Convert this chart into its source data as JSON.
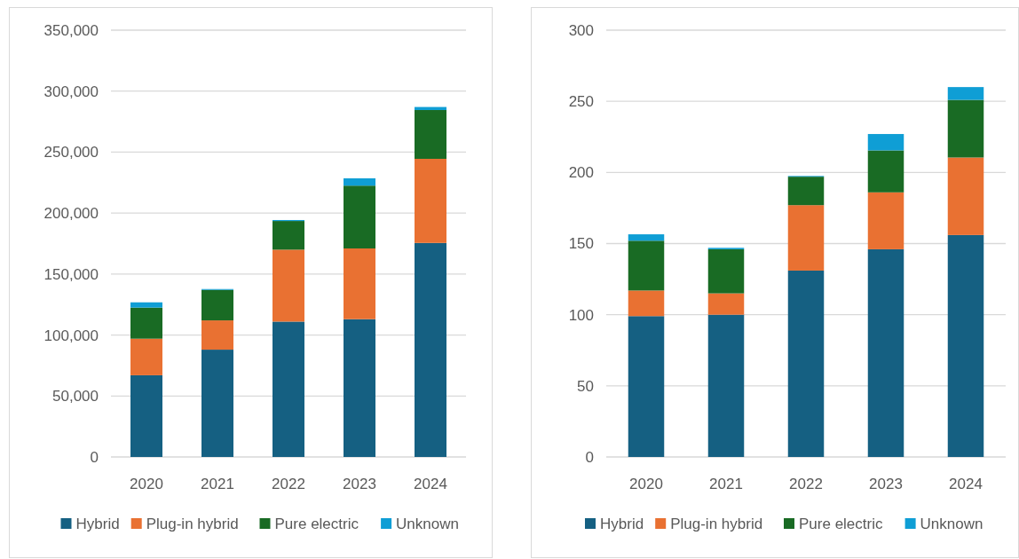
{
  "chart_data": [
    {
      "type": "bar",
      "stacked": true,
      "categories": [
        "2020",
        "2021",
        "2022",
        "2023",
        "2024"
      ],
      "series": [
        {
          "name": "Hybrid",
          "color": "#156082",
          "values": [
            67000,
            88000,
            111000,
            113000,
            175500
          ]
        },
        {
          "name": "Plug-in hybrid",
          "color": "#e97132",
          "values": [
            30000,
            24000,
            59000,
            58000,
            69000
          ]
        },
        {
          "name": "Pure electric",
          "color": "#196b24",
          "values": [
            25500,
            25000,
            23500,
            51500,
            40000
          ]
        },
        {
          "name": "Unknown",
          "color": "#0f9ed5",
          "values": [
            4300,
            700,
            800,
            6000,
            2500
          ]
        }
      ],
      "ylim": [
        0,
        350000
      ],
      "yticks": [
        {
          "value": 0,
          "label": "0"
        },
        {
          "value": 50000,
          "label": "50,000"
        },
        {
          "value": 100000,
          "label": "100,000"
        },
        {
          "value": 150000,
          "label": "150,000"
        },
        {
          "value": 200000,
          "label": "200,000"
        },
        {
          "value": 250000,
          "label": "250,000"
        },
        {
          "value": 300000,
          "label": "300,000"
        },
        {
          "value": 350000,
          "label": "350,000"
        }
      ],
      "grid": "y",
      "legend": "bottom"
    },
    {
      "type": "bar",
      "stacked": true,
      "categories": [
        "2020",
        "2021",
        "2022",
        "2023",
        "2024"
      ],
      "series": [
        {
          "name": "Hybrid",
          "color": "#156082",
          "values": [
            99,
            100,
            131,
            146,
            156
          ]
        },
        {
          "name": "Plug-in hybrid",
          "color": "#e97132",
          "values": [
            18,
            15,
            46,
            40,
            54.5
          ]
        },
        {
          "name": "Pure electric",
          "color": "#196b24",
          "values": [
            35,
            31,
            20,
            29.5,
            40.5
          ]
        },
        {
          "name": "Unknown",
          "color": "#0f9ed5",
          "values": [
            4.5,
            1,
            0.5,
            11.5,
            9
          ]
        }
      ],
      "ylim": [
        0,
        300
      ],
      "yticks": [
        0,
        50,
        100,
        150,
        200,
        250,
        300
      ],
      "grid": "y",
      "legend": "bottom"
    }
  ]
}
